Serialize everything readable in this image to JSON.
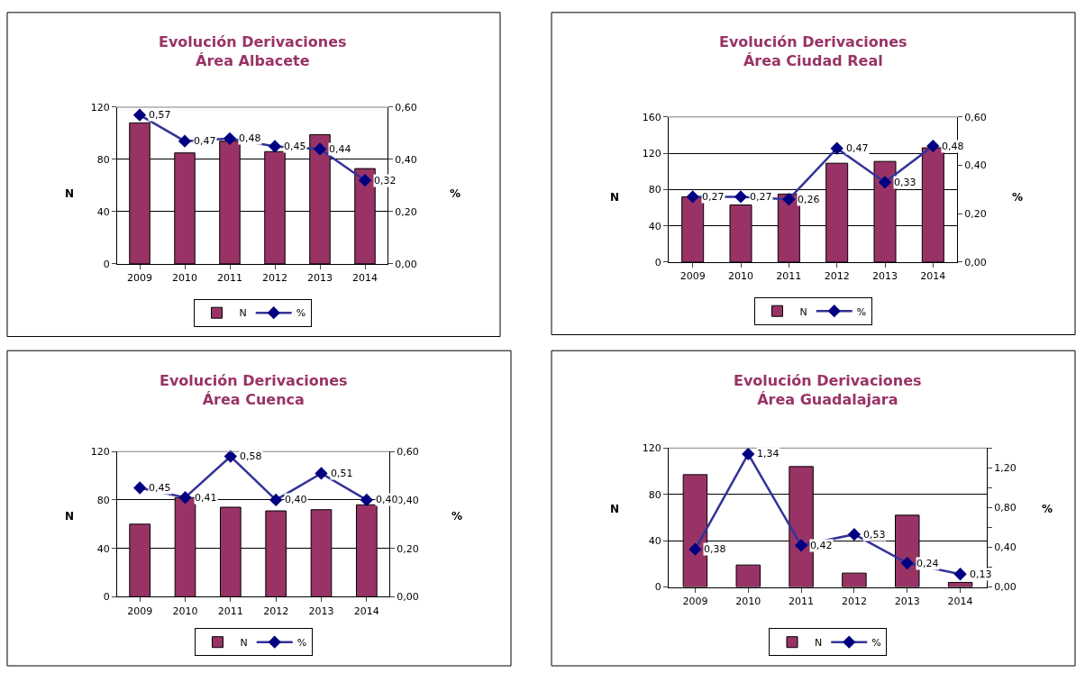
{
  "chart_data": [
    {
      "type": "bar",
      "title": "Evolución Derivaciones\nÁrea Albacete",
      "categories": [
        "2009",
        "2010",
        "2011",
        "2012",
        "2013",
        "2014"
      ],
      "series": [
        {
          "name": "N",
          "color": "#993366",
          "values": [
            108,
            85,
            94,
            86,
            99,
            73
          ]
        },
        {
          "name": "%",
          "type": "line",
          "axis": "y2",
          "color": "#333399",
          "values": [
            0.57,
            0.47,
            0.48,
            0.45,
            0.44,
            0.32
          ],
          "value_labels": [
            "0,57",
            "0,47",
            "0,48",
            "0,45",
            "0,44",
            "0,32"
          ]
        }
      ],
      "ylabel": "N",
      "y2label": "%",
      "ylim": [
        0,
        120
      ],
      "yticks": [
        0,
        40,
        80,
        120
      ],
      "y2lim": [
        0,
        0.6
      ],
      "y2ticks": [
        {
          "value": 0,
          "label": "0,00"
        },
        {
          "value": 0.2,
          "label": "0,20"
        },
        {
          "value": 0.4,
          "label": "0,40"
        },
        {
          "value": 0.6,
          "label": "0,60"
        }
      ],
      "grid": "y",
      "legend": "bottom",
      "marker": "diamond"
    },
    {
      "type": "bar",
      "title": "Evolución Derivaciones\nÁrea Ciudad Real",
      "categories": [
        "2009",
        "2010",
        "2011",
        "2012",
        "2013",
        "2014"
      ],
      "series": [
        {
          "name": "N",
          "color": "#993366",
          "values": [
            72,
            63,
            75,
            109,
            111,
            126
          ]
        },
        {
          "name": "%",
          "type": "line",
          "axis": "y2",
          "color": "#333399",
          "values": [
            0.27,
            0.27,
            0.26,
            0.47,
            0.33,
            0.48
          ],
          "value_labels": [
            "0,27",
            "0,27",
            "0,26",
            "0,47",
            "0,33",
            "0,48"
          ]
        }
      ],
      "ylabel": "N",
      "y2label": "%",
      "ylim": [
        0,
        160
      ],
      "yticks": [
        0,
        40,
        80,
        120,
        160
      ],
      "y2lim": [
        0,
        0.6
      ],
      "y2ticks": [
        {
          "value": 0,
          "label": "0,00"
        },
        {
          "value": 0.2,
          "label": "0,20"
        },
        {
          "value": 0.4,
          "label": "0,40"
        },
        {
          "value": 0.6,
          "label": "0,60"
        }
      ],
      "grid": "y",
      "legend": "bottom",
      "marker": "diamond"
    },
    {
      "type": "bar",
      "title": "Evolución Derivaciones\nÁrea Cuenca",
      "categories": [
        "2009",
        "2010",
        "2011",
        "2012",
        "2013",
        "2014"
      ],
      "series": [
        {
          "name": "N",
          "color": "#993366",
          "values": [
            60,
            82,
            74,
            71,
            72,
            76
          ]
        },
        {
          "name": "%",
          "type": "line",
          "axis": "y2",
          "color": "#333399",
          "values": [
            0.45,
            0.41,
            0.58,
            0.4,
            0.51,
            0.4
          ],
          "value_labels": [
            "0,45",
            "0,41",
            "0,58",
            "0,40",
            "0,51",
            "0,40"
          ]
        }
      ],
      "ylabel": "N",
      "y2label": "%",
      "ylim": [
        0,
        120
      ],
      "yticks": [
        0,
        40,
        80,
        120
      ],
      "y2lim": [
        0,
        0.6
      ],
      "y2ticks": [
        {
          "value": 0,
          "label": "0,00"
        },
        {
          "value": 0.2,
          "label": "0,20"
        },
        {
          "value": 0.4,
          "label": "0,40"
        },
        {
          "value": 0.6,
          "label": "0,60"
        }
      ],
      "grid": "y",
      "legend": "bottom",
      "marker": "diamond"
    },
    {
      "type": "bar",
      "title": "Evolución Derivaciones\nÁrea Guadalajara",
      "categories": [
        "2009",
        "2010",
        "2011",
        "2012",
        "2013",
        "2014"
      ],
      "series": [
        {
          "name": "N",
          "color": "#993366",
          "values": [
            97,
            19,
            104,
            12,
            62,
            4
          ]
        },
        {
          "name": "%",
          "type": "line",
          "axis": "y2",
          "color": "#333399",
          "values": [
            0.38,
            1.34,
            0.42,
            0.53,
            0.24,
            0.13
          ],
          "value_labels": [
            "0,38",
            "1,34",
            "0,42",
            "0,53",
            "0,24",
            "0,13"
          ]
        }
      ],
      "ylabel": "N",
      "y2label": "%",
      "ylim": [
        0,
        120
      ],
      "yticks": [
        0,
        40,
        80,
        120
      ],
      "y2lim": [
        0,
        1.4
      ],
      "y2ticks": [
        {
          "value": 0,
          "label": "0,00"
        },
        {
          "value": 0.2,
          "label": null
        },
        {
          "value": 0.4,
          "label": "0,40"
        },
        {
          "value": 0.6,
          "label": null
        },
        {
          "value": 0.8,
          "label": "0,80"
        },
        {
          "value": 1.0,
          "label": null
        },
        {
          "value": 1.2,
          "label": "1,20"
        },
        {
          "value": 1.4,
          "label": null
        }
      ],
      "grid": "y",
      "legend": "bottom",
      "marker": "diamond"
    }
  ]
}
